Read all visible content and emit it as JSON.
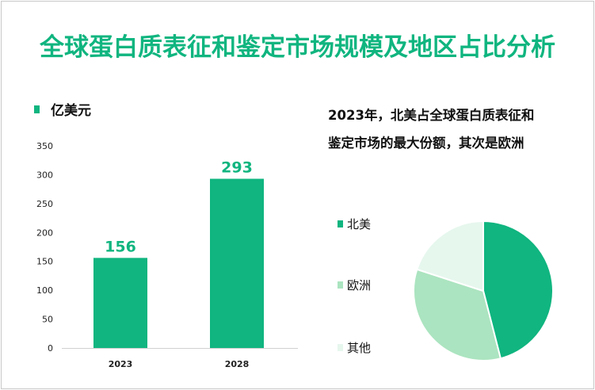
{
  "title": "全球蛋白质表征和鉴定市场规模及地区占比分析",
  "colors": {
    "primary": "#10b57f",
    "europe": "#abe4c0",
    "other": "#e6f7ee"
  },
  "chart_data": [
    {
      "type": "bar",
      "legend": "亿美元",
      "categories": [
        "2023",
        "2028"
      ],
      "values": [
        156,
        293
      ],
      "data_labels": [
        "156",
        "293"
      ],
      "ylim": [
        0,
        350
      ],
      "yticks": [
        "0",
        "50",
        "100",
        "150",
        "200",
        "250",
        "300",
        "350"
      ],
      "grid": false,
      "color": "#10b57f"
    },
    {
      "type": "pie",
      "annotation": "2023年，北美占全球蛋白质表征和鉴定市场的最大份额，其次是欧洲",
      "annotation_lines": [
        "2023年，北美占全球蛋白质表征和",
        "鉴定市场的最大份额，其次是欧洲"
      ],
      "slices": [
        {
          "label": "北美",
          "value": 46,
          "color": "#10b57f"
        },
        {
          "label": "欧洲",
          "value": 34,
          "color": "#abe4c0"
        },
        {
          "label": "其他",
          "value": 20,
          "color": "#e6f7ee"
        }
      ],
      "legend_placement": "left"
    }
  ]
}
